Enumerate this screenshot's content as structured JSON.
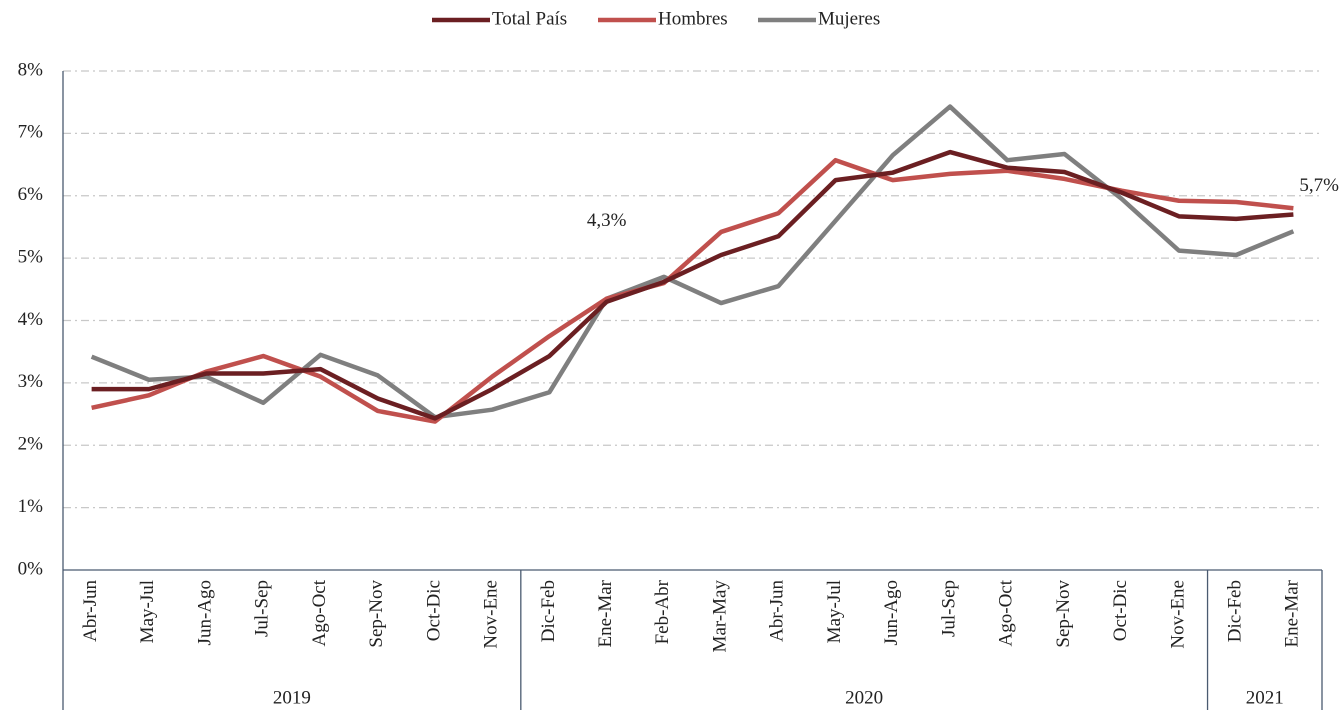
{
  "chart_data": {
    "type": "line",
    "categories": [
      "Abr-Jun",
      "May-Jul",
      "Jun-Ago",
      "Jul-Sep",
      "Ago-Oct",
      "Sep-Nov",
      "Oct-Dic",
      "Nov-Ene",
      "Dic-Feb",
      "Ene-Mar",
      "Feb-Abr",
      "Mar-May",
      "Abr-Jun",
      "May-Jul",
      "Jun-Ago",
      "Jul-Sep",
      "Ago-Oct",
      "Sep-Nov",
      "Oct-Dic",
      "Nov-Ene",
      "Dic-Feb",
      "Ene-Mar"
    ],
    "groups": [
      {
        "label": "2019",
        "span": 8
      },
      {
        "label": "2020",
        "span": 12
      },
      {
        "label": "2021",
        "span": 2
      }
    ],
    "series": [
      {
        "name": "Total País",
        "color": "#6b1f22",
        "values": [
          2.9,
          2.9,
          3.15,
          3.15,
          3.22,
          2.75,
          2.43,
          2.9,
          3.43,
          4.3,
          4.62,
          5.05,
          5.35,
          6.25,
          6.37,
          6.7,
          6.45,
          6.38,
          6.05,
          5.67,
          5.63,
          5.7
        ],
        "value_labels": [
          null,
          null,
          null,
          null,
          null,
          null,
          null,
          null,
          null,
          "4,3%",
          null,
          null,
          null,
          null,
          null,
          null,
          null,
          null,
          null,
          null,
          null,
          "5,7%"
        ]
      },
      {
        "name": "Hombres",
        "color": "#c0504d",
        "values": [
          2.6,
          2.8,
          3.18,
          3.43,
          3.1,
          2.55,
          2.38,
          3.1,
          3.75,
          4.35,
          4.6,
          5.42,
          5.72,
          6.57,
          6.25,
          6.35,
          6.4,
          6.27,
          6.08,
          5.92,
          5.9,
          5.8
        ]
      },
      {
        "name": "Mujeres",
        "color": "#7f7f7f",
        "values": [
          3.42,
          3.05,
          3.1,
          2.68,
          3.45,
          3.12,
          2.45,
          2.57,
          2.85,
          4.35,
          4.7,
          4.28,
          4.55,
          5.6,
          6.65,
          7.43,
          6.57,
          6.67,
          5.95,
          5.12,
          5.05,
          5.43
        ]
      }
    ],
    "ylim": [
      0,
      8
    ],
    "yticks": [
      {
        "value": 0,
        "label": "0%"
      },
      {
        "value": 1,
        "label": "1%"
      },
      {
        "value": 2,
        "label": "2%"
      },
      {
        "value": 3,
        "label": "3%"
      },
      {
        "value": 4,
        "label": "4%"
      },
      {
        "value": 5,
        "label": "5%"
      },
      {
        "value": 6,
        "label": "6%"
      },
      {
        "value": 7,
        "label": "7%"
      },
      {
        "value": 8,
        "label": "8%"
      }
    ],
    "grid": true,
    "legend": "top"
  }
}
